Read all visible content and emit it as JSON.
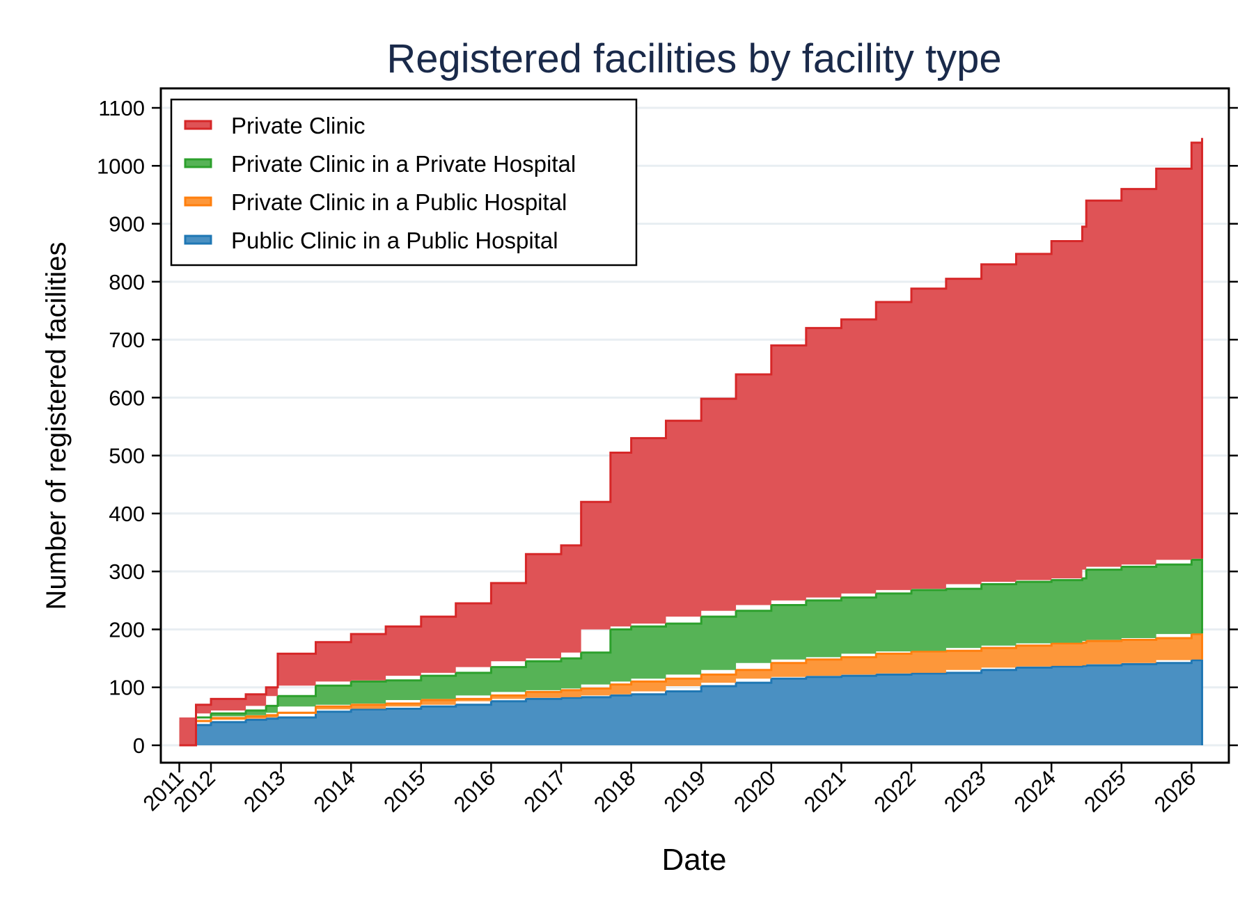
{
  "chart_data": {
    "type": "area",
    "stacked": true,
    "step": true,
    "title": "Registered facilities by facility type",
    "xlabel": "Date",
    "ylabel": "Number of registered facilities",
    "ylim": [
      0,
      1100
    ],
    "y_ticks": [
      0,
      100,
      200,
      300,
      400,
      500,
      600,
      700,
      800,
      900,
      1000,
      1100
    ],
    "x_ticks": [
      {
        "date": "2011-07-20",
        "label": "2011"
      },
      {
        "date": "2012-01-01",
        "label": "2012"
      },
      {
        "date": "2013-01-01",
        "label": "2013"
      },
      {
        "date": "2014-01-01",
        "label": "2014"
      },
      {
        "date": "2015-01-01",
        "label": "2015"
      },
      {
        "date": "2016-01-01",
        "label": "2016"
      },
      {
        "date": "2017-01-01",
        "label": "2017"
      },
      {
        "date": "2018-01-01",
        "label": "2018"
      },
      {
        "date": "2019-01-01",
        "label": "2019"
      },
      {
        "date": "2020-01-01",
        "label": "2020"
      },
      {
        "date": "2021-01-01",
        "label": "2021"
      },
      {
        "date": "2022-01-01",
        "label": "2022"
      },
      {
        "date": "2023-01-01",
        "label": "2023"
      },
      {
        "date": "2024-01-01",
        "label": "2024"
      },
      {
        "date": "2025-01-01",
        "label": "2025"
      },
      {
        "date": "2026-01-01",
        "label": "2026"
      }
    ],
    "grid": "horizontal",
    "legend_position": "top-left",
    "x": [
      "2011-07-20",
      "2011-10-15",
      "2012-01-01",
      "2012-07-01",
      "2012-10-15",
      "2012-12-15",
      "2013-07-01",
      "2014-01-01",
      "2014-07-01",
      "2015-01-01",
      "2015-07-01",
      "2016-01-01",
      "2016-07-01",
      "2017-01-01",
      "2017-04-15",
      "2017-09-15",
      "2018-01-01",
      "2018-07-01",
      "2019-01-01",
      "2019-07-01",
      "2020-01-01",
      "2020-07-01",
      "2021-01-01",
      "2021-07-01",
      "2022-01-01",
      "2022-07-01",
      "2023-01-01",
      "2023-07-01",
      "2024-01-01",
      "2024-06-10",
      "2024-07-01",
      "2025-01-01",
      "2025-07-01",
      "2026-01-01",
      "2026-02-25"
    ],
    "series": [
      {
        "name": "Public Clinic in a Public Hospital",
        "color": "#4a90c2",
        "line": "#1f77b4",
        "values": [
          0,
          35,
          40,
          44,
          46,
          48,
          58,
          62,
          63,
          67,
          70,
          76,
          80,
          82,
          83,
          86,
          88,
          93,
          102,
          108,
          115,
          118,
          120,
          122,
          124,
          125,
          130,
          134,
          136,
          137,
          138,
          140,
          142,
          147,
          148
        ]
      },
      {
        "name": "Private Clinic in a Public Hospital",
        "color": "#fd973a",
        "line": "#ff7f0e",
        "values": [
          0,
          7,
          7,
          6,
          6,
          8,
          9,
          8,
          9,
          11,
          10,
          10,
          12,
          13,
          15,
          19,
          22,
          22,
          20,
          22,
          27,
          30,
          32,
          36,
          38,
          38,
          38,
          38,
          40,
          40,
          42,
          42,
          43,
          45,
          45
        ]
      },
      {
        "name": "Private Clinic in a Private Hospital",
        "color": "#56b356",
        "line": "#2ca02c",
        "values": [
          0,
          6,
          8,
          10,
          16,
          29,
          36,
          40,
          40,
          42,
          45,
          49,
          53,
          55,
          62,
          95,
          95,
          95,
          100,
          102,
          100,
          102,
          103,
          104,
          106,
          107,
          110,
          110,
          109,
          111,
          123,
          126,
          127,
          128,
          129
        ]
      },
      {
        "name": "Private Clinic",
        "color": "#df5356",
        "line": "#d62728",
        "values": [
          0,
          22,
          25,
          28,
          32,
          73,
          75,
          82,
          93,
          102,
          120,
          145,
          185,
          195,
          260,
          305,
          325,
          350,
          376,
          408,
          448,
          470,
          480,
          503,
          520,
          535,
          552,
          566,
          585,
          607,
          637,
          652,
          683,
          720,
          726
        ]
      }
    ],
    "legend_order": [
      "Private Clinic",
      "Private Clinic in a Private Hospital",
      "Private Clinic in a Public Hospital",
      "Public Clinic in a Public Hospital"
    ]
  }
}
